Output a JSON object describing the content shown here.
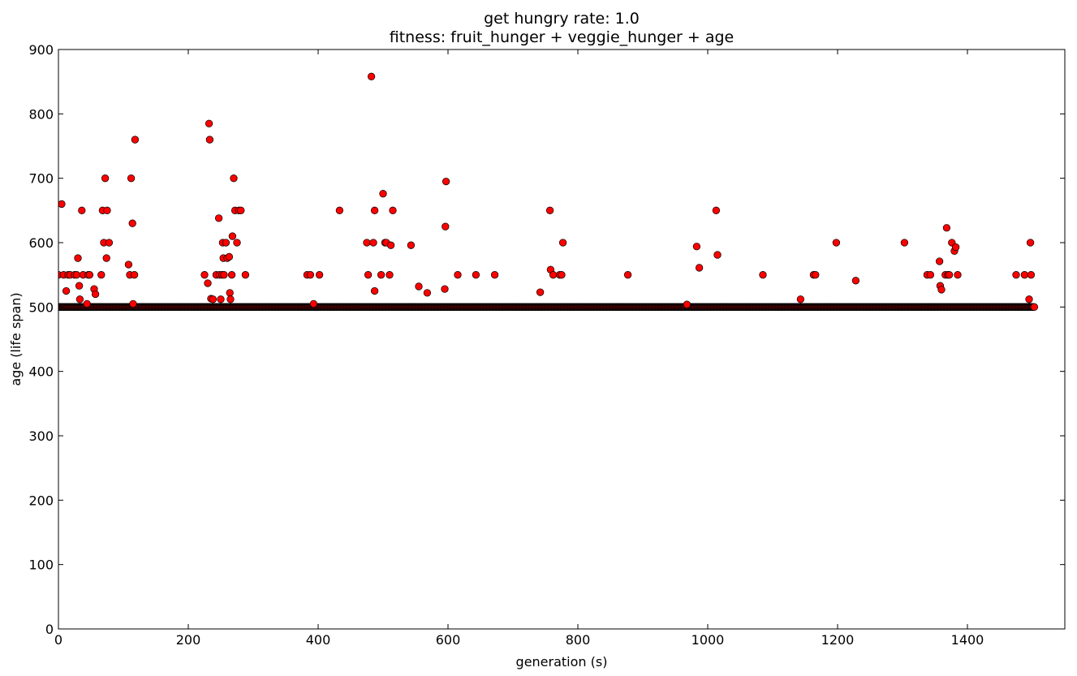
{
  "chart_data": {
    "type": "scatter",
    "title": "get hungry rate: 1.0",
    "subtitle": "fitness: fruit_hunger + veggie_hunger + age",
    "xlabel": "generation (s)",
    "ylabel": "age (life span)",
    "xlim": [
      0,
      1550
    ],
    "ylim": [
      0,
      900
    ],
    "x_ticks": [
      0,
      200,
      400,
      600,
      800,
      1000,
      1200,
      1400
    ],
    "y_ticks": [
      0,
      100,
      200,
      300,
      400,
      500,
      600,
      700,
      800,
      900
    ],
    "marker_color": "#ff0000",
    "marker_edge_color": "#000000",
    "baseline": {
      "y": 500,
      "x_start": 0,
      "x_end": 1503,
      "step": 1
    },
    "points": [
      [
        0,
        550
      ],
      [
        5,
        660
      ],
      [
        8,
        550
      ],
      [
        12,
        525
      ],
      [
        15,
        550
      ],
      [
        18,
        550
      ],
      [
        25,
        550
      ],
      [
        28,
        550
      ],
      [
        30,
        576
      ],
      [
        32,
        533
      ],
      [
        33,
        512
      ],
      [
        36,
        650
      ],
      [
        38,
        550
      ],
      [
        44,
        505
      ],
      [
        46,
        550
      ],
      [
        48,
        550
      ],
      [
        55,
        528
      ],
      [
        57,
        520
      ],
      [
        66,
        550
      ],
      [
        68,
        650
      ],
      [
        70,
        600
      ],
      [
        72,
        700
      ],
      [
        74,
        576
      ],
      [
        75,
        650
      ],
      [
        78,
        600
      ],
      [
        108,
        566
      ],
      [
        110,
        550
      ],
      [
        112,
        700
      ],
      [
        114,
        630
      ],
      [
        115,
        505
      ],
      [
        117,
        550
      ],
      [
        118,
        760
      ],
      [
        225,
        550
      ],
      [
        230,
        537
      ],
      [
        232,
        785
      ],
      [
        233,
        760
      ],
      [
        235,
        513
      ],
      [
        238,
        512
      ],
      [
        243,
        550
      ],
      [
        247,
        638
      ],
      [
        248,
        550
      ],
      [
        250,
        512
      ],
      [
        252,
        550
      ],
      [
        253,
        600
      ],
      [
        254,
        576
      ],
      [
        255,
        550
      ],
      [
        258,
        600
      ],
      [
        260,
        576
      ],
      [
        263,
        578
      ],
      [
        264,
        522
      ],
      [
        265,
        512
      ],
      [
        267,
        550
      ],
      [
        268,
        610
      ],
      [
        270,
        700
      ],
      [
        272,
        650
      ],
      [
        275,
        600
      ],
      [
        278,
        650
      ],
      [
        281,
        650
      ],
      [
        288,
        550
      ],
      [
        383,
        550
      ],
      [
        388,
        550
      ],
      [
        393,
        505
      ],
      [
        402,
        550
      ],
      [
        433,
        650
      ],
      [
        475,
        600
      ],
      [
        477,
        550
      ],
      [
        482,
        858
      ],
      [
        485,
        600
      ],
      [
        487,
        650
      ],
      [
        487,
        525
      ],
      [
        497,
        550
      ],
      [
        500,
        676
      ],
      [
        503,
        600
      ],
      [
        505,
        600
      ],
      [
        510,
        550
      ],
      [
        512,
        596
      ],
      [
        515,
        650
      ],
      [
        543,
        596
      ],
      [
        555,
        532
      ],
      [
        568,
        522
      ],
      [
        595,
        528
      ],
      [
        596,
        625
      ],
      [
        597,
        695
      ],
      [
        615,
        550
      ],
      [
        643,
        550
      ],
      [
        672,
        550
      ],
      [
        742,
        523
      ],
      [
        757,
        650
      ],
      [
        758,
        558
      ],
      [
        762,
        550
      ],
      [
        772,
        550
      ],
      [
        775,
        550
      ],
      [
        777,
        600
      ],
      [
        877,
        550
      ],
      [
        968,
        504
      ],
      [
        983,
        594
      ],
      [
        987,
        561
      ],
      [
        1013,
        650
      ],
      [
        1015,
        581
      ],
      [
        1085,
        550
      ],
      [
        1143,
        512
      ],
      [
        1163,
        550
      ],
      [
        1166,
        550
      ],
      [
        1198,
        600
      ],
      [
        1228,
        541
      ],
      [
        1303,
        600
      ],
      [
        1338,
        550
      ],
      [
        1343,
        550
      ],
      [
        1357,
        571
      ],
      [
        1358,
        533
      ],
      [
        1360,
        527
      ],
      [
        1366,
        550
      ],
      [
        1368,
        623
      ],
      [
        1370,
        550
      ],
      [
        1372,
        550
      ],
      [
        1376,
        600
      ],
      [
        1380,
        587
      ],
      [
        1382,
        593
      ],
      [
        1385,
        550
      ],
      [
        1475,
        550
      ],
      [
        1488,
        550
      ],
      [
        1495,
        512
      ],
      [
        1497,
        600
      ],
      [
        1498,
        550
      ]
    ]
  }
}
